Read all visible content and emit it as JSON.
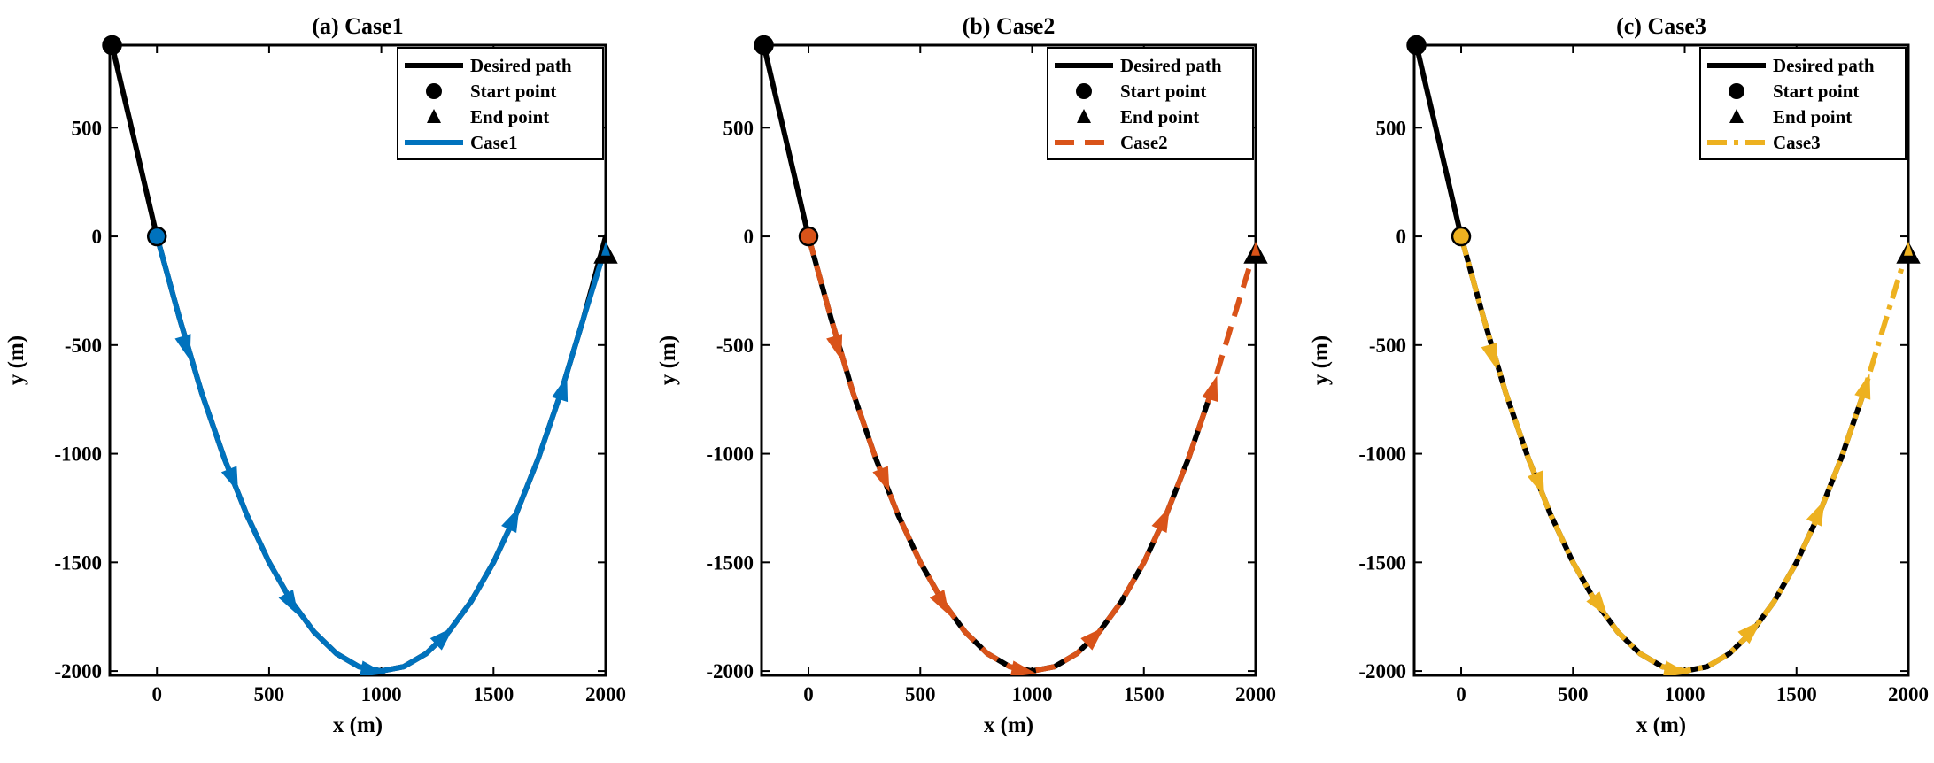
{
  "chart_data": [
    {
      "type": "line",
      "title": "(a) Case1",
      "xlabel": "x (m)",
      "ylabel": "y (m)",
      "xlim": [
        -210,
        2000
      ],
      "ylim": [
        -2020,
        880
      ],
      "xticks": [
        0,
        500,
        1000,
        1500,
        2000
      ],
      "xtick_labels": [
        "0",
        "500",
        "1000",
        "1500",
        "2000"
      ],
      "yticks": [
        -2000,
        -1500,
        -1000,
        -500,
        0,
        500
      ],
      "ytick_labels": [
        "-2000",
        "-1500",
        "-1000",
        "-500",
        "0",
        "500"
      ],
      "desired_path": {
        "x": [
          -200,
          -150,
          -100,
          -50,
          0,
          100,
          200,
          300,
          400,
          500,
          600,
          700,
          800,
          900,
          1000,
          1100,
          1200,
          1300,
          1400,
          1500,
          1600,
          1700,
          1800,
          1900,
          2000
        ],
        "y": [
          880,
          660,
          440,
          220,
          0,
          -375,
          -722,
          -1020,
          -1280,
          -1500,
          -1680,
          -1820,
          -1920,
          -1980,
          -2000,
          -1980,
          -1920,
          -1820,
          -1680,
          -1500,
          -1280,
          -1020,
          -720,
          -380,
          0
        ]
      },
      "start_points": [
        {
          "x": -200,
          "y": 880
        },
        {
          "x": 0,
          "y": 0
        }
      ],
      "end_point": {
        "x": 2000,
        "y": -80
      },
      "case_series": {
        "name": "Case1",
        "color": "#0072BD",
        "dash": "solid",
        "x": [
          0,
          100,
          200,
          300,
          400,
          500,
          600,
          700,
          800,
          900,
          1000,
          1100,
          1200,
          1300,
          1400,
          1500,
          1600,
          1700,
          1800,
          1900,
          1990
        ],
        "y": [
          0,
          -375,
          -722,
          -1020,
          -1280,
          -1500,
          -1680,
          -1820,
          -1920,
          -1980,
          -2000,
          -1980,
          -1920,
          -1820,
          -1680,
          -1500,
          -1280,
          -1020,
          -720,
          -380,
          -80
        ]
      },
      "arrows": [
        {
          "x": 130,
          "y": -510
        },
        {
          "x": 340,
          "y": -1120
        },
        {
          "x": 600,
          "y": -1690
        },
        {
          "x": 960,
          "y": -2000
        },
        {
          "x": 1280,
          "y": -1840
        },
        {
          "x": 1590,
          "y": -1300
        },
        {
          "x": 1810,
          "y": -700
        }
      ],
      "legend": {
        "position": "top-right",
        "entries": [
          "Desired path",
          "Start point",
          "End point",
          "Case1"
        ]
      }
    },
    {
      "type": "line",
      "title": "(b) Case2",
      "xlabel": "x (m)",
      "ylabel": "y (m)",
      "xlim": [
        -210,
        2000
      ],
      "ylim": [
        -2020,
        880
      ],
      "xticks": [
        0,
        500,
        1000,
        1500,
        2000
      ],
      "xtick_labels": [
        "0",
        "500",
        "1000",
        "1500",
        "2000"
      ],
      "yticks": [
        -2000,
        -1500,
        -1000,
        -500,
        0,
        500
      ],
      "ytick_labels": [
        "-2000",
        "-1500",
        "-1000",
        "-500",
        "0",
        "500"
      ],
      "desired_path": {
        "x": [
          -200,
          -150,
          -100,
          -50,
          0,
          100,
          200,
          300,
          400,
          500,
          600,
          700,
          800,
          900,
          1000,
          1100,
          1200,
          1300,
          1400,
          1500,
          1600,
          1700,
          1800
        ],
        "y": [
          880,
          660,
          440,
          220,
          0,
          -375,
          -722,
          -1020,
          -1280,
          -1500,
          -1680,
          -1820,
          -1920,
          -1980,
          -2000,
          -1980,
          -1920,
          -1820,
          -1680,
          -1500,
          -1280,
          -1020,
          -720
        ]
      },
      "start_points": [
        {
          "x": -200,
          "y": 880
        },
        {
          "x": 0,
          "y": 0
        }
      ],
      "end_point": {
        "x": 2000,
        "y": -80
      },
      "case_series": {
        "name": "Case2",
        "color": "#D95319",
        "dash": "dashed",
        "x": [
          0,
          100,
          200,
          300,
          400,
          500,
          600,
          700,
          800,
          900,
          1000,
          1100,
          1200,
          1300,
          1400,
          1500,
          1600,
          1700,
          1800,
          1900,
          1990
        ],
        "y": [
          0,
          -375,
          -722,
          -1020,
          -1280,
          -1500,
          -1680,
          -1820,
          -1920,
          -1980,
          -2000,
          -1980,
          -1920,
          -1820,
          -1680,
          -1500,
          -1280,
          -1020,
          -720,
          -380,
          -80
        ]
      },
      "arrows": [
        {
          "x": 130,
          "y": -510
        },
        {
          "x": 340,
          "y": -1120
        },
        {
          "x": 600,
          "y": -1690
        },
        {
          "x": 960,
          "y": -2000
        },
        {
          "x": 1280,
          "y": -1840
        },
        {
          "x": 1590,
          "y": -1300
        },
        {
          "x": 1810,
          "y": -700
        }
      ],
      "legend": {
        "position": "top-right",
        "entries": [
          "Desired path",
          "Start point",
          "End point",
          "Case2"
        ]
      }
    },
    {
      "type": "line",
      "title": "(c) Case3",
      "xlabel": "x (m)",
      "ylabel": "y (m)",
      "xlim": [
        -210,
        2000
      ],
      "ylim": [
        -2020,
        880
      ],
      "xticks": [
        0,
        500,
        1000,
        1500,
        2000
      ],
      "xtick_labels": [
        "0",
        "500",
        "1000",
        "1500",
        "2000"
      ],
      "yticks": [
        -2000,
        -1500,
        -1000,
        -500,
        0,
        500
      ],
      "ytick_labels": [
        "-2000",
        "-1500",
        "-1000",
        "-500",
        "0",
        "500"
      ],
      "desired_path": {
        "x": [
          -200,
          -150,
          -100,
          -50,
          0,
          100,
          200,
          300,
          400,
          500,
          600,
          700,
          800,
          900,
          1000,
          1100,
          1200,
          1300,
          1400,
          1500,
          1600,
          1700,
          1800
        ],
        "y": [
          880,
          660,
          440,
          220,
          0,
          -375,
          -722,
          -1020,
          -1280,
          -1500,
          -1680,
          -1820,
          -1920,
          -1980,
          -2000,
          -1980,
          -1920,
          -1820,
          -1680,
          -1500,
          -1280,
          -1020,
          -720
        ]
      },
      "start_points": [
        {
          "x": -200,
          "y": 880
        },
        {
          "x": 0,
          "y": 0
        }
      ],
      "end_point": {
        "x": 2000,
        "y": -80
      },
      "case_series": {
        "name": "Case3",
        "color": "#EDB120",
        "dash": "dashdot",
        "x": [
          0,
          100,
          200,
          300,
          400,
          500,
          600,
          700,
          800,
          900,
          1000,
          1100,
          1200,
          1300,
          1400,
          1500,
          1600,
          1700,
          1800,
          1900,
          1990
        ],
        "y": [
          0,
          -375,
          -722,
          -1020,
          -1280,
          -1500,
          -1680,
          -1820,
          -1920,
          -1980,
          -2000,
          -1980,
          -1920,
          -1820,
          -1680,
          -1500,
          -1280,
          -1020,
          -720,
          -380,
          -80
        ]
      },
      "arrows": [
        {
          "x": 140,
          "y": -550
        },
        {
          "x": 350,
          "y": -1140
        },
        {
          "x": 620,
          "y": -1700
        },
        {
          "x": 960,
          "y": -2000
        },
        {
          "x": 1300,
          "y": -1810
        },
        {
          "x": 1600,
          "y": -1270
        },
        {
          "x": 1810,
          "y": -690
        }
      ],
      "legend": {
        "position": "top-right",
        "entries": [
          "Desired path",
          "Start point",
          "End point",
          "Case3"
        ]
      }
    }
  ]
}
